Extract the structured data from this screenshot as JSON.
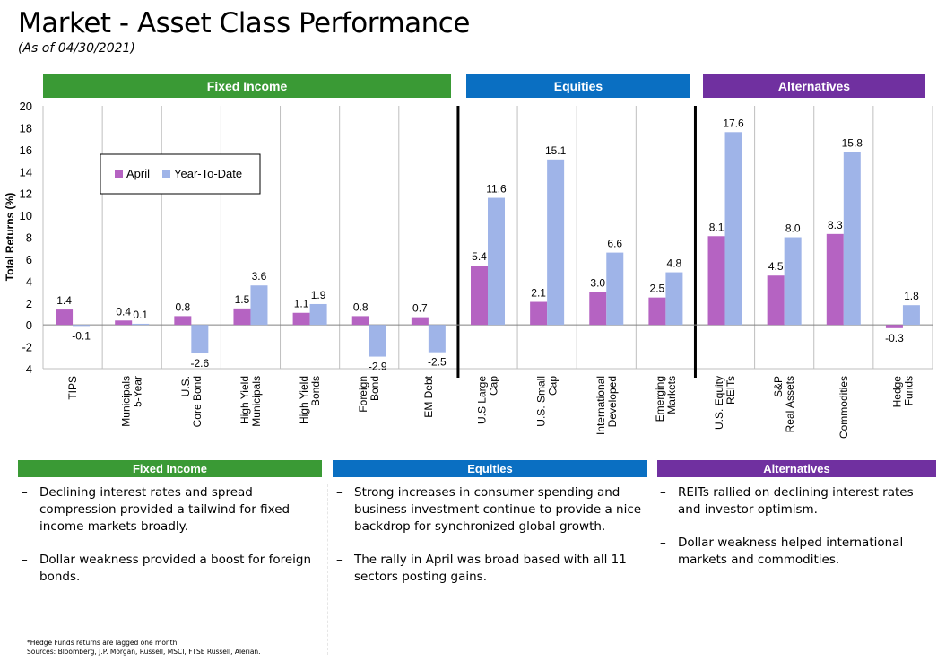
{
  "header": {
    "title": "Market - Asset Class Performance",
    "subtitle": "(As of 04/30/2021)"
  },
  "colors": {
    "fixed_income": "#3a9a35",
    "equities": "#0a6fc2",
    "alternatives": "#7030a0",
    "april": "#b563c2",
    "ytd": "#9fb4e8"
  },
  "groups": {
    "fixed_income": "Fixed Income",
    "equities": "Equities",
    "alternatives": "Alternatives"
  },
  "chart_data": {
    "type": "bar",
    "ylabel": "Total Returns (%)",
    "ylim": [
      -4,
      20
    ],
    "yticks": [
      -4,
      -2,
      0,
      2,
      4,
      6,
      8,
      10,
      12,
      14,
      16,
      18,
      20
    ],
    "legend_position": "top-left",
    "categories": [
      [
        "TIPS"
      ],
      [
        "Municipals",
        "5-Year"
      ],
      [
        "U.S.",
        "Core Bond"
      ],
      [
        "High Yield",
        "Municipals"
      ],
      [
        "High Yield",
        "Bonds"
      ],
      [
        "Foreign",
        "Bond"
      ],
      [
        "EM Debt"
      ],
      [
        "U.S Large",
        "Cap"
      ],
      [
        "U.S. Small",
        "Cap"
      ],
      [
        "International",
        "Developed"
      ],
      [
        "Emerging",
        "Markets"
      ],
      [
        "U.S. Equity",
        "REITs"
      ],
      [
        "S&P",
        "Real Assets"
      ],
      [
        "Commodities"
      ],
      [
        "Hedge",
        "Funds"
      ]
    ],
    "series": [
      {
        "name": "April",
        "values": [
          1.4,
          0.4,
          0.8,
          1.5,
          1.1,
          0.8,
          0.7,
          5.4,
          2.1,
          3.0,
          2.5,
          8.1,
          4.5,
          8.3,
          -0.3
        ]
      },
      {
        "name": "Year-To-Date",
        "values": [
          -0.1,
          0.1,
          -2.6,
          3.6,
          1.9,
          -2.9,
          -2.5,
          11.6,
          15.1,
          6.6,
          4.8,
          17.6,
          8.0,
          15.8,
          1.8
        ]
      }
    ]
  },
  "commentary": {
    "fixed_income": [
      "Declining interest rates and spread compression provided a tailwind for fixed income markets broadly.",
      "Dollar weakness provided a boost for foreign bonds."
    ],
    "equities": [
      "Strong increases in consumer spending and business investment continue to provide a nice backdrop for synchronized global growth.",
      "The rally in April was broad based with all 11 sectors posting gains."
    ],
    "alternatives": [
      "REITs rallied on declining interest rates and investor optimism.",
      "Dollar weakness helped international markets and commodities."
    ]
  },
  "footnotes": {
    "line1": "*Hedge Funds returns are lagged one month.",
    "line2": "Sources: Bloomberg, J.P. Morgan, Russell, MSCI, FTSE Russell, Alerian."
  }
}
